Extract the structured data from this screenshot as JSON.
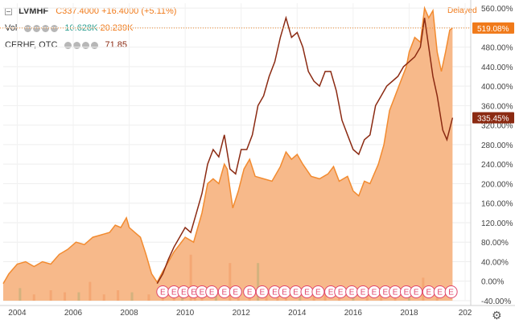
{
  "legend": {
    "main_symbol": "LVMHF",
    "main_close": "C337.4000",
    "main_change": "+16.4000 (+5.11%)",
    "vol_label": "Vol",
    "vol_value_1": "10.628K",
    "vol_value_2": "20.239K",
    "compare_symbol": "CFRHF, OTC",
    "compare_value": "71.85"
  },
  "status": "Delayed",
  "colors": {
    "lvmhf": "#f28b30",
    "lvmhf_fill": "#f7b584",
    "cfrhf": "#8b2a12",
    "volume_bar": "#f3a36e",
    "volume_bar_alt": "#c9b07a",
    "earnings_marker": "#e0446a",
    "label_orange": "#f07a1a",
    "label_dark": "#8b2a12"
  },
  "icons": {
    "settings": "gear-icon",
    "earnings": "earnings-marker-icon"
  },
  "chart_data": {
    "type": "area",
    "yaxis_unit": "% change",
    "ylim": [
      -40,
      570
    ],
    "yticks": [
      "560.00%",
      "520.00%",
      "480.00%",
      "440.00%",
      "400.00%",
      "360.00%",
      "320.00%",
      "280.00%",
      "240.00%",
      "200.00%",
      "160.00%",
      "120.00%",
      "80.00%",
      "40.00%",
      "0.00%",
      "-40.00%"
    ],
    "xlim": [
      2003.5,
      2020.2
    ],
    "xticks": [
      "2004",
      "2006",
      "2008",
      "2010",
      "2012",
      "2014",
      "2016",
      "2018",
      "202"
    ],
    "last_value_labels": [
      {
        "series": "LVMHF",
        "text": "519.08%"
      },
      {
        "series": "CFRHF",
        "text": "335.45%"
      }
    ],
    "series": [
      {
        "name": "LVMHF",
        "style": "area",
        "points": [
          [
            2003.5,
            -5
          ],
          [
            2003.7,
            15
          ],
          [
            2004.0,
            35
          ],
          [
            2004.3,
            40
          ],
          [
            2004.6,
            30
          ],
          [
            2004.9,
            40
          ],
          [
            2005.2,
            35
          ],
          [
            2005.5,
            55
          ],
          [
            2005.8,
            65
          ],
          [
            2006.1,
            80
          ],
          [
            2006.4,
            75
          ],
          [
            2006.7,
            90
          ],
          [
            2007.0,
            95
          ],
          [
            2007.3,
            100
          ],
          [
            2007.5,
            115
          ],
          [
            2007.7,
            110
          ],
          [
            2007.9,
            130
          ],
          [
            2008.0,
            110
          ],
          [
            2008.2,
            100
          ],
          [
            2008.4,
            90
          ],
          [
            2008.6,
            55
          ],
          [
            2008.8,
            15
          ],
          [
            2009.0,
            -2
          ],
          [
            2009.2,
            20
          ],
          [
            2009.4,
            40
          ],
          [
            2009.6,
            60
          ],
          [
            2009.8,
            75
          ],
          [
            2010.0,
            90
          ],
          [
            2010.3,
            80
          ],
          [
            2010.6,
            140
          ],
          [
            2010.8,
            200
          ],
          [
            2011.0,
            210
          ],
          [
            2011.2,
            200
          ],
          [
            2011.4,
            240
          ],
          [
            2011.5,
            230
          ],
          [
            2011.7,
            150
          ],
          [
            2011.9,
            185
          ],
          [
            2012.1,
            230
          ],
          [
            2012.3,
            250
          ],
          [
            2012.5,
            215
          ],
          [
            2012.8,
            210
          ],
          [
            2013.1,
            205
          ],
          [
            2013.4,
            235
          ],
          [
            2013.6,
            265
          ],
          [
            2013.8,
            250
          ],
          [
            2014.0,
            260
          ],
          [
            2014.2,
            240
          ],
          [
            2014.5,
            215
          ],
          [
            2014.8,
            210
          ],
          [
            2015.1,
            220
          ],
          [
            2015.3,
            235
          ],
          [
            2015.5,
            205
          ],
          [
            2015.8,
            215
          ],
          [
            2016.0,
            185
          ],
          [
            2016.2,
            175
          ],
          [
            2016.4,
            205
          ],
          [
            2016.6,
            200
          ],
          [
            2016.9,
            240
          ],
          [
            2017.1,
            280
          ],
          [
            2017.3,
            350
          ],
          [
            2017.5,
            380
          ],
          [
            2017.7,
            410
          ],
          [
            2017.9,
            440
          ],
          [
            2018.0,
            470
          ],
          [
            2018.2,
            500
          ],
          [
            2018.4,
            490
          ],
          [
            2018.55,
            560
          ],
          [
            2018.7,
            540
          ],
          [
            2018.85,
            555
          ],
          [
            2019.0,
            470
          ],
          [
            2019.15,
            430
          ],
          [
            2019.3,
            470
          ],
          [
            2019.45,
            515
          ],
          [
            2019.55,
            519
          ]
        ]
      },
      {
        "name": "CFRHF",
        "style": "line",
        "points": [
          [
            2009.0,
            -5
          ],
          [
            2009.2,
            15
          ],
          [
            2009.4,
            45
          ],
          [
            2009.6,
            70
          ],
          [
            2009.8,
            90
          ],
          [
            2010.0,
            110
          ],
          [
            2010.2,
            100
          ],
          [
            2010.4,
            140
          ],
          [
            2010.6,
            180
          ],
          [
            2010.8,
            240
          ],
          [
            2011.0,
            270
          ],
          [
            2011.2,
            255
          ],
          [
            2011.4,
            300
          ],
          [
            2011.6,
            230
          ],
          [
            2011.8,
            220
          ],
          [
            2012.0,
            270
          ],
          [
            2012.2,
            270
          ],
          [
            2012.4,
            300
          ],
          [
            2012.6,
            360
          ],
          [
            2012.8,
            380
          ],
          [
            2013.0,
            420
          ],
          [
            2013.2,
            450
          ],
          [
            2013.4,
            500
          ],
          [
            2013.6,
            540
          ],
          [
            2013.8,
            500
          ],
          [
            2014.0,
            510
          ],
          [
            2014.2,
            480
          ],
          [
            2014.4,
            430
          ],
          [
            2014.6,
            410
          ],
          [
            2014.8,
            400
          ],
          [
            2015.0,
            430
          ],
          [
            2015.2,
            430
          ],
          [
            2015.4,
            390
          ],
          [
            2015.6,
            330
          ],
          [
            2015.8,
            300
          ],
          [
            2016.0,
            270
          ],
          [
            2016.2,
            260
          ],
          [
            2016.4,
            290
          ],
          [
            2016.6,
            300
          ],
          [
            2016.8,
            360
          ],
          [
            2017.0,
            380
          ],
          [
            2017.2,
            400
          ],
          [
            2017.4,
            410
          ],
          [
            2017.6,
            420
          ],
          [
            2017.8,
            440
          ],
          [
            2018.0,
            450
          ],
          [
            2018.2,
            460
          ],
          [
            2018.4,
            480
          ],
          [
            2018.55,
            540
          ],
          [
            2018.7,
            480
          ],
          [
            2018.85,
            420
          ],
          [
            2019.0,
            380
          ],
          [
            2019.2,
            310
          ],
          [
            2019.35,
            290
          ],
          [
            2019.55,
            335
          ]
        ]
      },
      {
        "name": "Vol",
        "style": "bars",
        "points": [
          [
            2004.1,
            6
          ],
          [
            2004.6,
            3
          ],
          [
            2005.2,
            5
          ],
          [
            2005.7,
            4
          ],
          [
            2006.2,
            4
          ],
          [
            2006.6,
            9
          ],
          [
            2007.1,
            3
          ],
          [
            2007.6,
            5
          ],
          [
            2008.1,
            4
          ],
          [
            2008.7,
            3
          ],
          [
            2009.2,
            4
          ],
          [
            2009.6,
            5
          ],
          [
            2009.9,
            6
          ],
          [
            2010.2,
            22
          ],
          [
            2010.35,
            4
          ],
          [
            2010.6,
            3
          ],
          [
            2011.1,
            5
          ],
          [
            2011.6,
            18
          ],
          [
            2011.9,
            4
          ],
          [
            2012.3,
            3
          ],
          [
            2012.6,
            18
          ],
          [
            2012.9,
            5
          ],
          [
            2013.3,
            3
          ],
          [
            2013.6,
            5
          ],
          [
            2014.1,
            4
          ],
          [
            2014.6,
            3
          ],
          [
            2015.0,
            5
          ],
          [
            2015.5,
            3
          ],
          [
            2016.0,
            4
          ],
          [
            2016.5,
            3
          ],
          [
            2017.0,
            4
          ],
          [
            2017.5,
            5
          ],
          [
            2018.0,
            7
          ],
          [
            2018.5,
            11
          ],
          [
            2019.0,
            6
          ]
        ]
      }
    ],
    "earnings_markers": {
      "label": "E",
      "x": [
        2009.2,
        2009.6,
        2009.95,
        2010.3,
        2010.6,
        2010.95,
        2011.4,
        2011.8,
        2012.3,
        2012.75,
        2013.2,
        2013.55,
        2013.95,
        2014.35,
        2014.75,
        2015.2,
        2015.55,
        2015.95,
        2016.35,
        2016.75,
        2017.15,
        2017.5,
        2017.9,
        2018.25,
        2018.7,
        2019.1,
        2019.5
      ]
    }
  }
}
